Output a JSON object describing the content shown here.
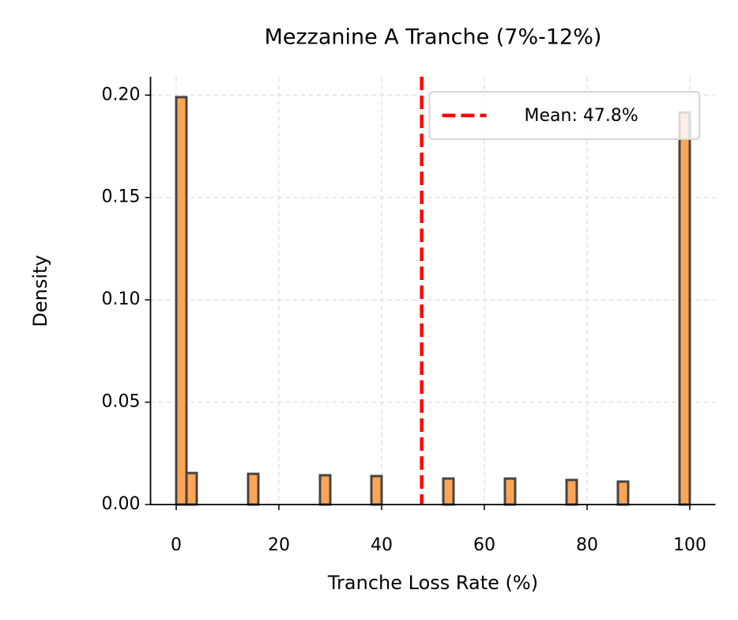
{
  "chart_data": {
    "type": "histogram",
    "title": "Mezzanine A Tranche (7%-12%)",
    "x_label": "Tranche Loss Rate (%)",
    "y_label": "Density",
    "bins": [
      0,
      2,
      4,
      6,
      8,
      10,
      12,
      14,
      16,
      18,
      20,
      22,
      24,
      26,
      28,
      30,
      32,
      34,
      36,
      38,
      40,
      42,
      44,
      46,
      48,
      50,
      52,
      54,
      56,
      58,
      60,
      62,
      64,
      66,
      68,
      70,
      72,
      74,
      76,
      78,
      80,
      82,
      84,
      86,
      88,
      90,
      92,
      94,
      96,
      98,
      100
    ],
    "values": [
      0.199,
      0.0154,
      0,
      0,
      0,
      0,
      0,
      0.015,
      0,
      0,
      0,
      0,
      0,
      0,
      0.0143,
      0,
      0,
      0,
      0,
      0.0139,
      0,
      0,
      0,
      0,
      0,
      0,
      0.0127,
      0,
      0,
      0,
      0,
      0,
      0.0127,
      0,
      0,
      0,
      0,
      0,
      0.012,
      0,
      0,
      0,
      0,
      0.0112,
      0,
      0,
      0,
      0,
      0,
      0.1915
    ],
    "color": "#ffa556",
    "edge_color": "#444444",
    "mean": 47.8,
    "mean_color": "#ff0000",
    "mean_label": "Mean: 47.8%",
    "legend": "upper right",
    "xlim": [
      -5,
      105
    ],
    "xticks": [
      0,
      20,
      40,
      60,
      80,
      100
    ],
    "ylim": [
      0,
      0.209
    ],
    "yticks": [
      {
        "value": 0,
        "label": "0.00"
      },
      0.05,
      {
        "value": 0.1,
        "label": "0.10"
      },
      0.15,
      {
        "value": 0.2,
        "label": "0.20"
      }
    ],
    "grid": true
  }
}
